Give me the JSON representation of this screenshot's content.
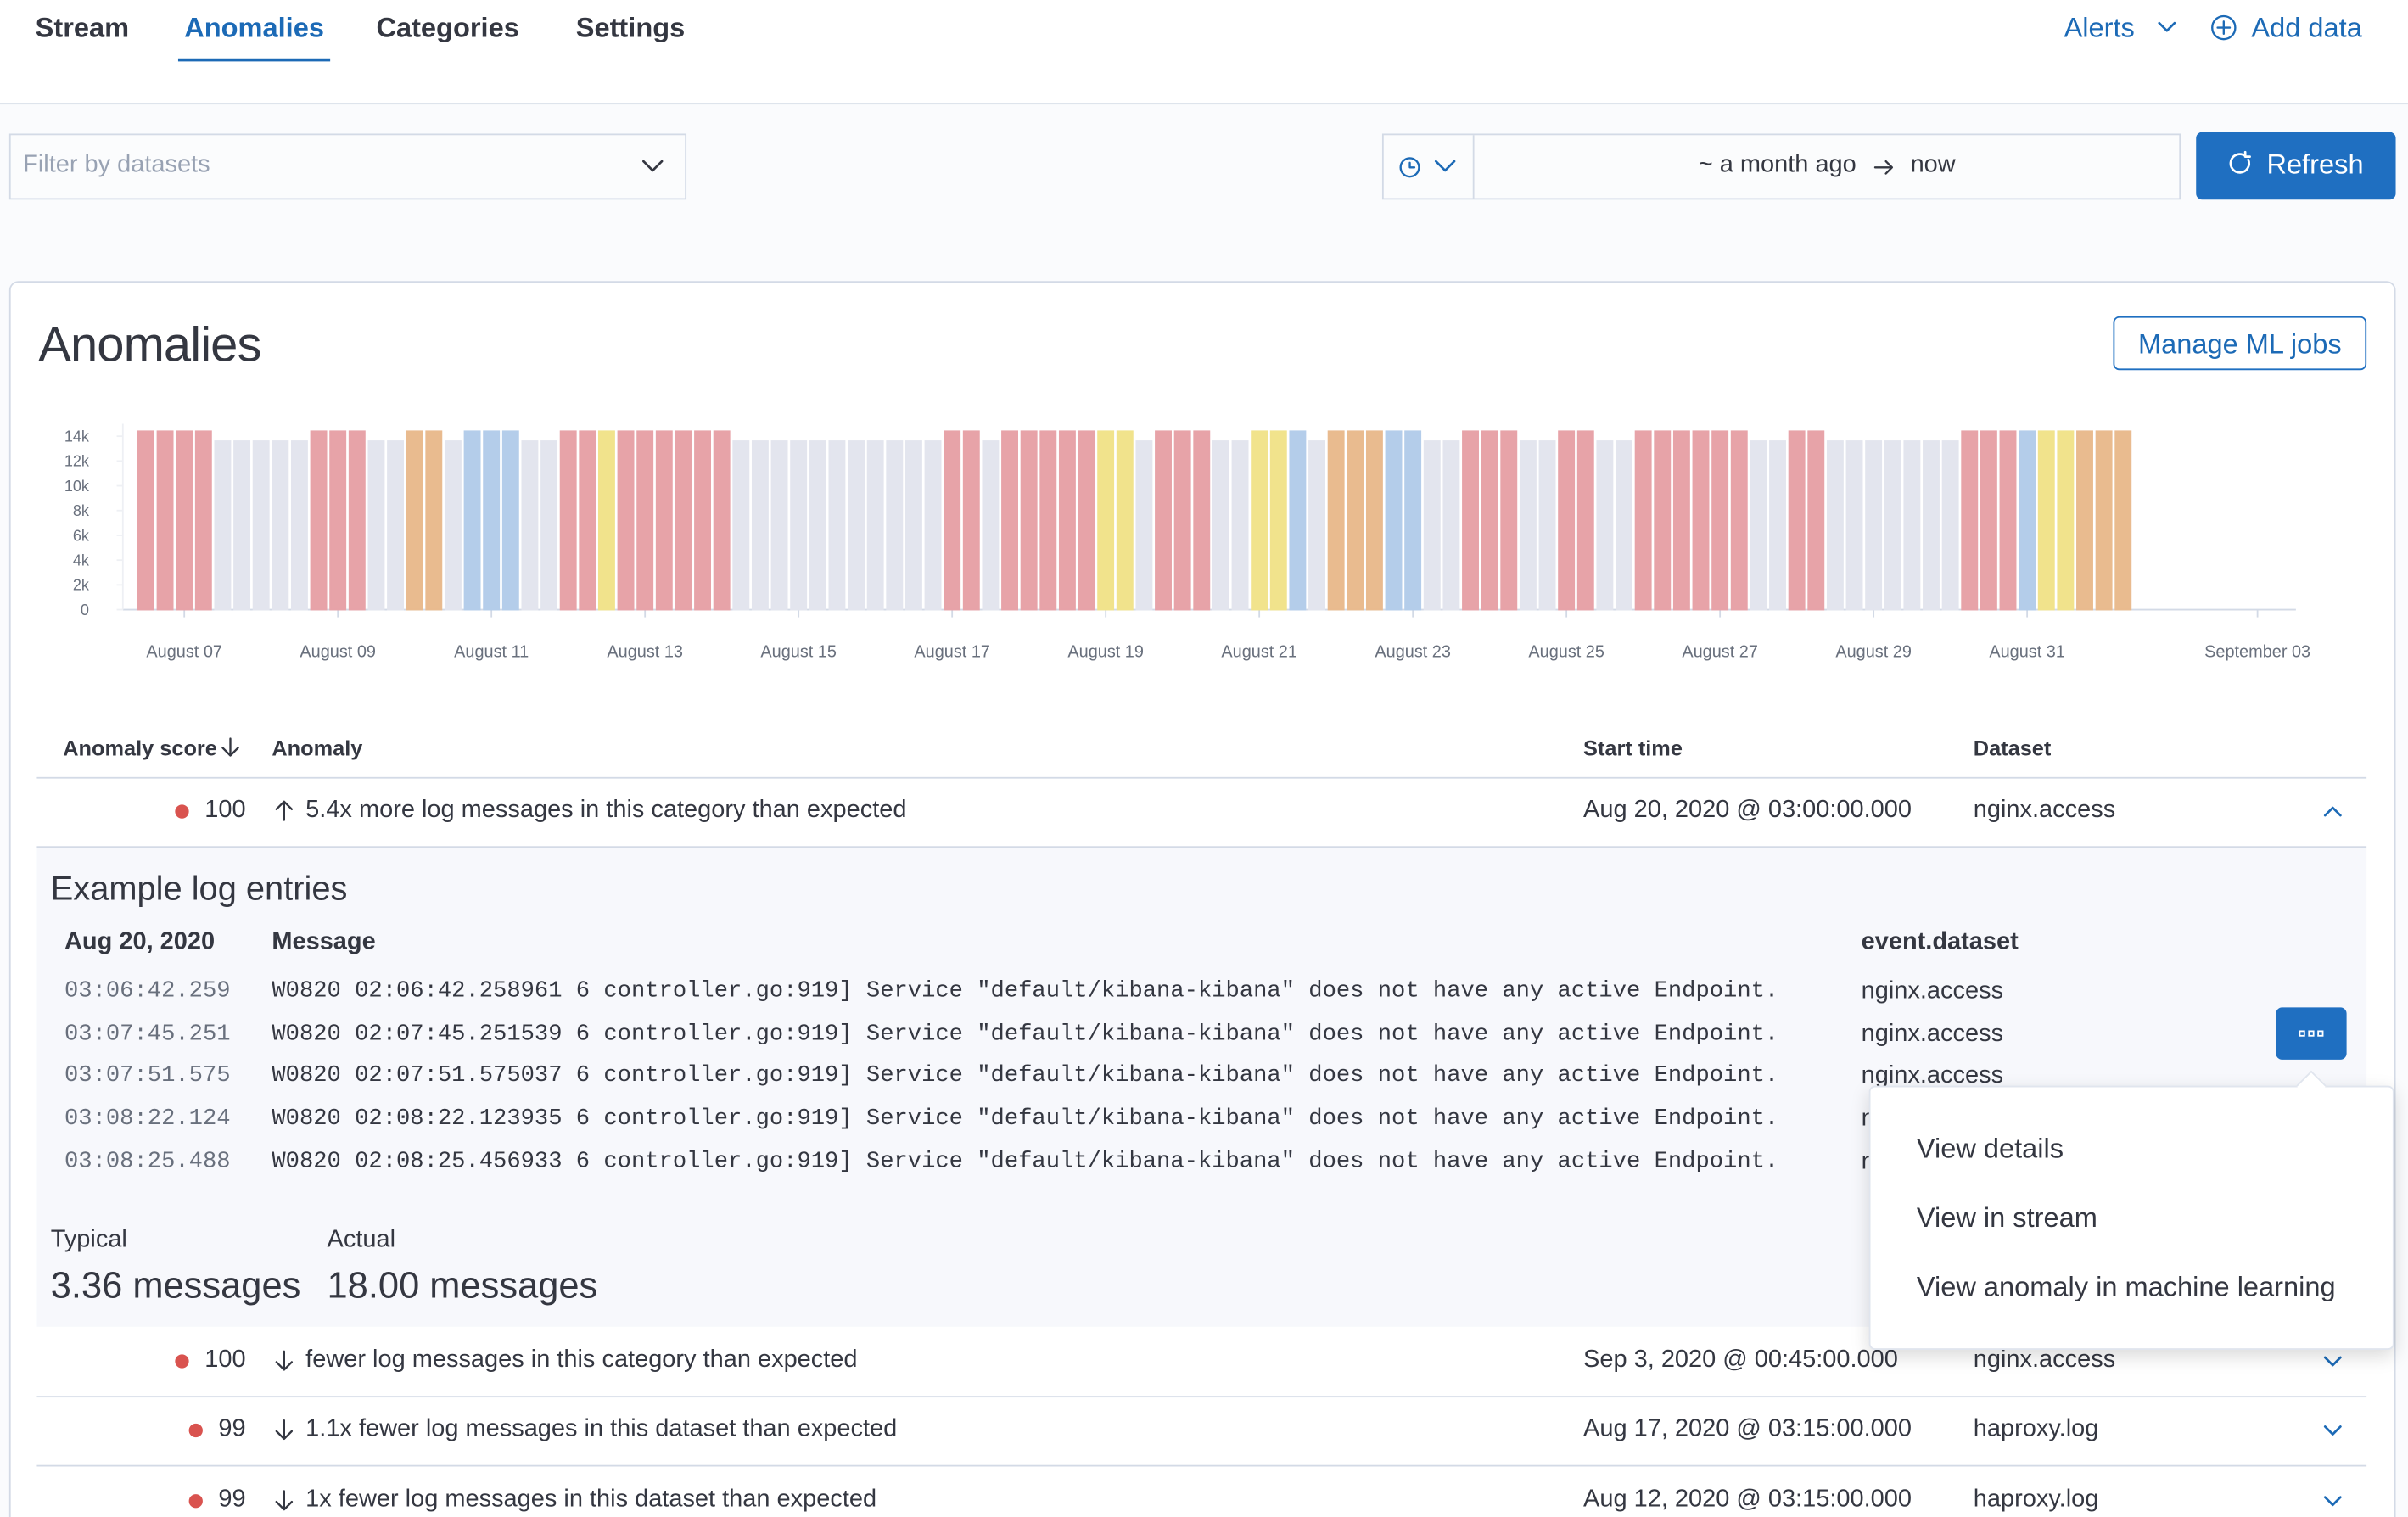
{
  "nav": {
    "tabs": [
      "Stream",
      "Anomalies",
      "Categories",
      "Settings"
    ],
    "active": 1,
    "alerts": "Alerts",
    "add_data": "Add data"
  },
  "filter": {
    "placeholder": "Filter by datasets"
  },
  "time": {
    "start": "~ a month ago",
    "end": "now"
  },
  "refresh": "Refresh",
  "panel": {
    "title": "Anomalies",
    "manage": "Manage ML jobs"
  },
  "chart_data": {
    "type": "bar",
    "x": [
      6.5,
      6.75,
      7,
      7.25,
      7.5,
      7.75,
      8,
      8.25,
      8.5,
      8.75,
      9,
      9.25,
      9.5,
      9.75,
      10,
      10.25,
      10.5,
      10.75,
      11,
      11.25,
      11.5,
      11.75,
      12,
      12.25,
      12.5,
      12.75,
      13,
      13.25,
      13.5,
      13.75,
      14,
      14.25,
      14.5,
      14.75,
      15,
      15.25,
      15.5,
      15.75,
      16,
      16.25,
      16.5,
      16.75,
      17,
      17.25,
      17.5,
      17.75,
      18,
      18.25,
      18.5,
      18.75,
      19,
      19.25,
      19.5,
      19.75,
      20,
      20.25,
      20.5,
      20.75,
      21,
      21.25,
      21.5,
      21.75,
      22,
      22.25,
      22.5,
      22.75,
      23,
      23.25,
      23.5,
      23.75,
      24,
      24.25,
      24.5,
      24.75,
      25,
      25.25,
      25.5,
      25.75,
      26,
      26.25,
      26.5,
      26.75,
      27,
      27.25,
      27.5,
      27.75,
      28,
      28.25,
      28.5,
      28.75,
      29,
      29.25,
      29.5,
      29.75,
      30,
      30.25,
      30.5,
      30.75,
      31,
      31.25,
      31.5,
      31.75,
      32,
      32.25
    ],
    "values": [
      14400,
      14400,
      14400,
      14400,
      13600,
      13600,
      13600,
      13600,
      13600,
      14400,
      14400,
      14400,
      13600,
      13600,
      14400,
      14400,
      13600,
      14400,
      14400,
      14400,
      13600,
      13600,
      14400,
      14400,
      14400,
      14400,
      14400,
      14400,
      14400,
      14400,
      14400,
      13600,
      13600,
      13600,
      13600,
      13600,
      13600,
      13600,
      13600,
      13600,
      13600,
      13600,
      14400,
      14400,
      13600,
      14400,
      14400,
      14400,
      14400,
      14400,
      14400,
      14400,
      13600,
      14400,
      14400,
      14400,
      13600,
      13600,
      14400,
      14400,
      14400,
      13600,
      14400,
      14400,
      14400,
      14400,
      14400,
      13600,
      13600,
      14400,
      14400,
      14400,
      13600,
      13600,
      14400,
      14400,
      13600,
      13600,
      14400,
      14400,
      14400,
      14400,
      14400,
      14400,
      13600,
      13600,
      14400,
      14400,
      13600,
      13600,
      13600,
      13600,
      13600,
      13600,
      13600,
      14400,
      14400,
      14400,
      14400,
      14400,
      14400,
      14400,
      14400,
      14400
    ],
    "colors": [
      "#e7a3a8",
      "#e7a3a8",
      "#e7a3a8",
      "#e7a3a8",
      "#e3e5ee",
      "#e3e5ee",
      "#e3e5ee",
      "#e3e5ee",
      "#e3e5ee",
      "#e7a3a8",
      "#e7a3a8",
      "#e7a3a8",
      "#e3e5ee",
      "#e3e5ee",
      "#e9bb8f",
      "#e9bb8f",
      "#e3e5ee",
      "#b4cdea",
      "#b4cdea",
      "#b4cdea",
      "#e3e5ee",
      "#e3e5ee",
      "#e7a3a8",
      "#e7a3a8",
      "#f1e38c",
      "#e7a3a8",
      "#e7a3a8",
      "#e7a3a8",
      "#e7a3a8",
      "#e7a3a8",
      "#e7a3a8",
      "#e3e5ee",
      "#e3e5ee",
      "#e3e5ee",
      "#e3e5ee",
      "#e3e5ee",
      "#e3e5ee",
      "#e3e5ee",
      "#e3e5ee",
      "#e3e5ee",
      "#e3e5ee",
      "#e3e5ee",
      "#e7a3a8",
      "#e7a3a8",
      "#e3e5ee",
      "#e7a3a8",
      "#e7a3a8",
      "#e7a3a8",
      "#e7a3a8",
      "#e7a3a8",
      "#f1e38c",
      "#f1e38c",
      "#e3e5ee",
      "#e7a3a8",
      "#e7a3a8",
      "#e7a3a8",
      "#e3e5ee",
      "#e3e5ee",
      "#f1e38c",
      "#f1e38c",
      "#b4cdea",
      "#e3e5ee",
      "#e9bb8f",
      "#e9bb8f",
      "#e9bb8f",
      "#b4cdea",
      "#b4cdea",
      "#e3e5ee",
      "#e3e5ee",
      "#e7a3a8",
      "#e7a3a8",
      "#e7a3a8",
      "#e3e5ee",
      "#e3e5ee",
      "#e7a3a8",
      "#e7a3a8",
      "#e3e5ee",
      "#e3e5ee",
      "#e7a3a8",
      "#e7a3a8",
      "#e7a3a8",
      "#e7a3a8",
      "#e7a3a8",
      "#e7a3a8",
      "#e3e5ee",
      "#e3e5ee",
      "#e7a3a8",
      "#e7a3a8",
      "#e3e5ee",
      "#e3e5ee",
      "#e3e5ee",
      "#e3e5ee",
      "#e3e5ee",
      "#e3e5ee",
      "#e3e5ee",
      "#e7a3a8",
      "#e7a3a8",
      "#e7a3a8",
      "#b4cdea",
      "#f1e38c",
      "#f1e38c",
      "#e9bb8f",
      "#e9bb8f",
      "#e9bb8f"
    ],
    "xlim": [
      6.2,
      34.5
    ],
    "xticks": [
      {
        "value": 7,
        "label": "August 07"
      },
      {
        "value": 9,
        "label": "August 09"
      },
      {
        "value": 11,
        "label": "August 11"
      },
      {
        "value": 13,
        "label": "August 13"
      },
      {
        "value": 15,
        "label": "August 15"
      },
      {
        "value": 17,
        "label": "August 17"
      },
      {
        "value": 19,
        "label": "August 19"
      },
      {
        "value": 21,
        "label": "August 21"
      },
      {
        "value": 23,
        "label": "August 23"
      },
      {
        "value": 25,
        "label": "August 25"
      },
      {
        "value": 27,
        "label": "August 27"
      },
      {
        "value": 29,
        "label": "August 29"
      },
      {
        "value": 31,
        "label": "August 31"
      },
      {
        "value": 34,
        "label": "September 03"
      }
    ],
    "ylim": [
      0,
      15000
    ],
    "yticks": [
      0,
      {
        "value": 2000,
        "label": "2k"
      },
      {
        "value": 4000,
        "label": "4k"
      },
      {
        "value": 6000,
        "label": "6k"
      },
      {
        "value": 8000,
        "label": "8k"
      },
      {
        "value": 10000,
        "label": "10k"
      },
      {
        "value": 12000,
        "label": "12k"
      },
      {
        "value": 14000,
        "label": "14k"
      }
    ]
  },
  "table": {
    "headers": [
      "Anomaly score",
      "Anomaly",
      "Start time",
      "Dataset"
    ],
    "rows": [
      {
        "score": 100,
        "direction": "up",
        "anomaly": "5.4x more log messages in this category than expected",
        "start": "Aug 20, 2020 @ 03:00:00.000",
        "dataset": "nginx.access",
        "expanded": true
      },
      {
        "score": 100,
        "direction": "down",
        "anomaly": "fewer log messages in this category than expected",
        "start": "Sep 3, 2020 @ 00:45:00.000",
        "dataset": "nginx.access",
        "expanded": false
      },
      {
        "score": 99,
        "direction": "down",
        "anomaly": "1.1x fewer log messages in this dataset than expected",
        "start": "Aug 17, 2020 @ 03:15:00.000",
        "dataset": "haproxy.log",
        "expanded": false
      },
      {
        "score": 99,
        "direction": "down",
        "anomaly": "1x fewer log messages in this dataset than expected",
        "start": "Aug 12, 2020 @ 03:15:00.000",
        "dataset": "haproxy.log",
        "expanded": false
      }
    ]
  },
  "expanded": {
    "title": "Example log entries",
    "date": "Aug 20, 2020",
    "message_header": "Message",
    "dataset_header": "event.dataset",
    "entries": [
      {
        "time": "03:06:42.259",
        "message": "W0820 02:06:42.258961 6 controller.go:919] Service \"default/kibana-kibana\" does not have any active Endpoint.",
        "dataset": "nginx.access"
      },
      {
        "time": "03:07:45.251",
        "message": "W0820 02:07:45.251539 6 controller.go:919] Service \"default/kibana-kibana\" does not have any active Endpoint.",
        "dataset": "nginx.access"
      },
      {
        "time": "03:07:51.575",
        "message": "W0820 02:07:51.575037 6 controller.go:919] Service \"default/kibana-kibana\" does not have any active Endpoint.",
        "dataset": "nginx.access"
      },
      {
        "time": "03:08:22.124",
        "message": "W0820 02:08:22.123935 6 controller.go:919] Service \"default/kibana-kibana\" does not have any active Endpoint.",
        "dataset": "nginx.access"
      },
      {
        "time": "03:08:25.488",
        "message": "W0820 02:08:25.456933 6 controller.go:919] Service \"default/kibana-kibana\" does not have any active Endpoint.",
        "dataset": "nginx.access"
      }
    ],
    "typical_label": "Typical",
    "typical": "3.36 messages",
    "actual_label": "Actual",
    "actual": "18.00 messages"
  },
  "menu": [
    "View details",
    "View in stream",
    "View anomaly in machine learning"
  ]
}
